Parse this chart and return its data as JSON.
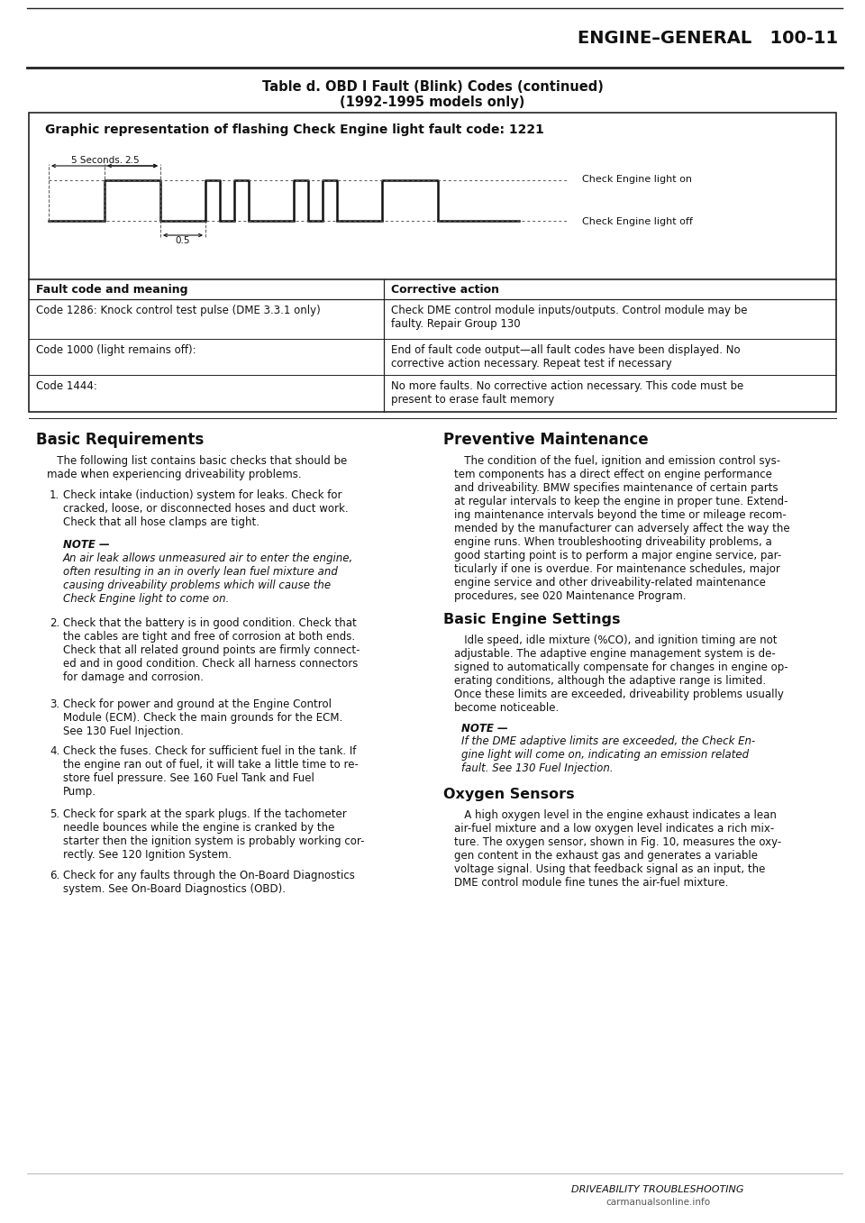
{
  "page_header": "ENGINE–GENERAL   100-11",
  "table_title_line1": "Table d. OBD I Fault (Blink) Codes (continued)",
  "table_title_line2": "(1992-1995 models only)",
  "graphic_title": "Graphic representation of flashing Check Engine light fault code: 1221",
  "label_on": "Check Engine light on",
  "label_off": "Check Engine light off",
  "fault_header_left": "Fault code and meaning",
  "fault_header_right": "Corrective action",
  "fault_rows": [
    {
      "code": "Code 1286: Knock control test pulse (DME 3.3.1 only)",
      "action": "Check DME control module inputs/outputs. Control module may be\nfaulty. Repair Group 130"
    },
    {
      "code": "Code 1000 (light remains off):",
      "action": "End of fault code output—all fault codes have been displayed. No\ncorrective action necessary. Repeat test if necessary"
    },
    {
      "code": "Code 1444:",
      "action": "No more faults. No corrective action necessary. This code must be\npresent to erase fault memory"
    }
  ],
  "section_left_title": "Basic Requirements",
  "section_left_para1": "   The following list contains basic checks that should be\nmade when experiencing driveability problems.",
  "section_left_items": [
    "Check intake (induction) system for leaks. Check for\ncracked, loose, or disconnected hoses and duct work.\nCheck that all hose clamps are tight.",
    "Check that the battery is in good condition. Check that\nthe cables are tight and free of corrosion at both ends.\nCheck that all related ground points are firmly connect-\ned and in good condition. Check all harness connectors\nfor damage and corrosion.",
    "Check for power and ground at the Engine Control\nModule (ECM). Check the main grounds for the ECM.\nSee 130 Fuel Injection.",
    "Check the fuses. Check for sufficient fuel in the tank. If\nthe engine ran out of fuel, it will take a little time to re-\nstore fuel pressure. See 160 Fuel Tank and Fuel\nPump.",
    "Check for spark at the spark plugs. If the tachometer\nneedle bounces while the engine is cranked by the\nstarter then the ignition system is probably working cor-\nrectly. See 120 Ignition System.",
    "Check for any faults through the On-Board Diagnostics\nsystem. See On-Board Diagnostics (OBD)."
  ],
  "note_left_title": "NOTE —",
  "note_left_text": "An air leak allows unmeasured air to enter the engine,\noften resulting in an in overly lean fuel mixture and\ncausing driveability problems which will cause the\nCheck Engine light to come on.",
  "section_right_title": "Preventive Maintenance",
  "section_right_para": "   The condition of the fuel, ignition and emission control sys-\ntem components has a direct effect on engine performance\nand driveability. BMW specifies maintenance of certain parts\nat regular intervals to keep the engine in proper tune. Extend-\ning maintenance intervals beyond the time or mileage recom-\nmended by the manufacturer can adversely affect the way the\nengine runs. When troubleshooting driveability problems, a\ngood starting point is to perform a major engine service, par-\nticularly if one is overdue. For maintenance schedules, major\nengine service and other driveability-related maintenance\nprocedures, see 020 Maintenance Program.",
  "section_right2_title": "Basic Engine Settings",
  "section_right2_para": "   Idle speed, idle mixture (%CO), and ignition timing are not\nadjustable. The adaptive engine management system is de-\nsigned to automatically compensate for changes in engine op-\nerating conditions, although the adaptive range is limited.\nOnce these limits are exceeded, driveability problems usually\nbecome noticeable.",
  "note_right_title": "NOTE —",
  "note_right_text": "If the DME adaptive limits are exceeded, the Check En-\ngine light will come on, indicating an emission related\nfault. See 130 Fuel Injection.",
  "section_right3_title": "Oxygen Sensors",
  "section_right3_para": "   A high oxygen level in the engine exhaust indicates a lean\nair-fuel mixture and a low oxygen level indicates a rich mix-\nture. The oxygen sensor, shown in Fig. 10, measures the oxy-\ngen content in the exhaust gas and generates a variable\nvoltage signal. Using that feedback signal as an input, the\nDME control module fine tunes the air-fuel mixture.",
  "footer_right": "DRIVEABILITY TROUBLESHOOTING",
  "footer_website": "carmanualsonline.info",
  "bg_color": "#ffffff",
  "text_color": "#111111",
  "border_color": "#222222"
}
